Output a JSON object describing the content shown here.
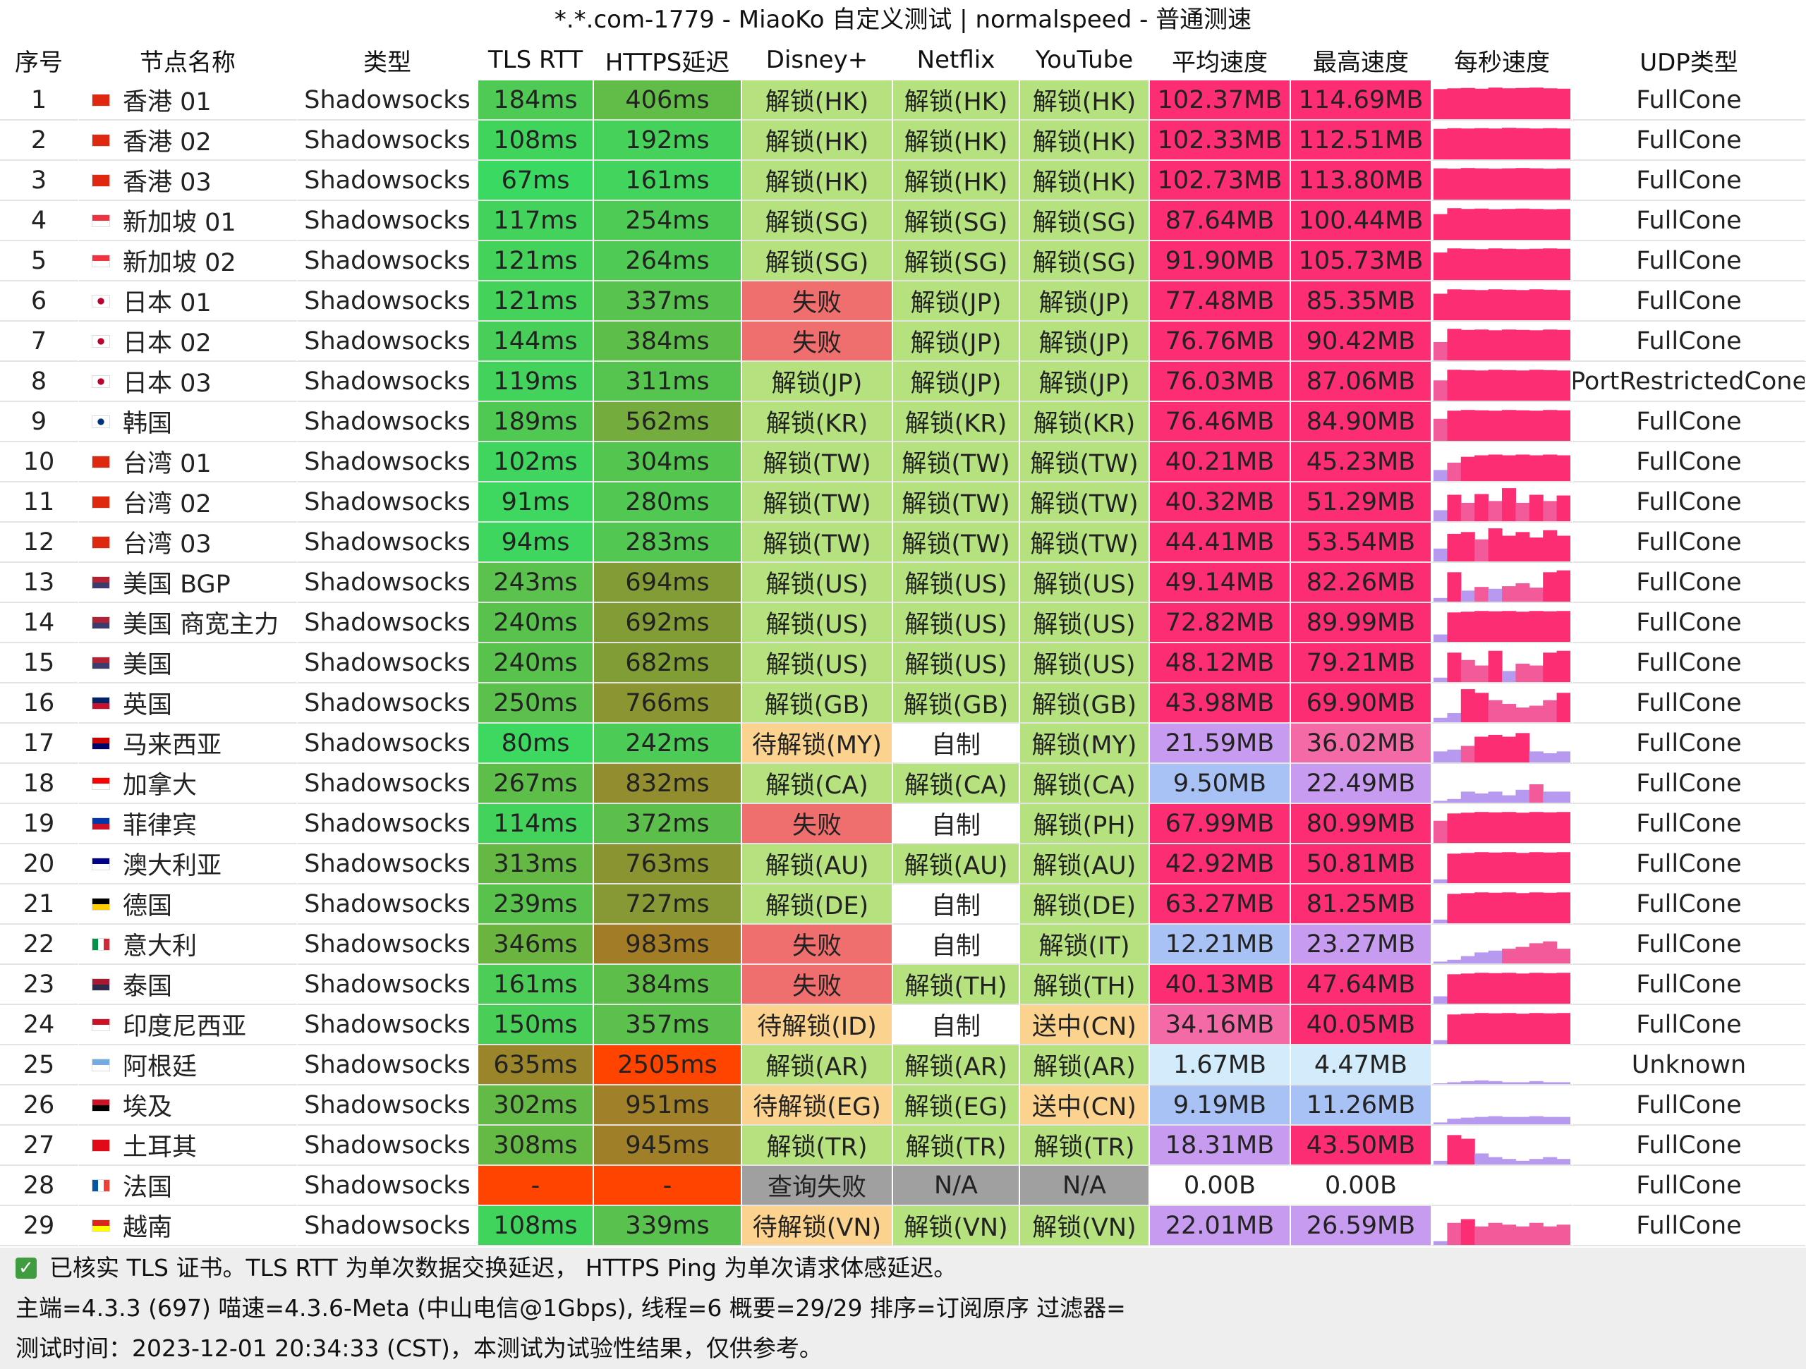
{
  "title": "*.*.com-1779 - MiaoKo 自定义测试 | normalspeed - 普通测速",
  "columns": [
    "序号",
    "节点名称",
    "类型",
    "TLS RTT",
    "HTTPS延迟",
    "Disney+",
    "Netflix",
    "YouTube",
    "平均速度",
    "最高速度",
    "每秒速度",
    "UDP类型"
  ],
  "rows": [
    {
      "idx": "1",
      "flag": "hk",
      "name": "香港 01",
      "type": "Shadowsocks",
      "tls": "184ms",
      "https": "406ms",
      "disney": "解锁(HK)",
      "netflix": "解锁(HK)",
      "youtube": "解锁(HK)",
      "avg": "102.37MB",
      "max": "114.69MB",
      "udp": "FullCone",
      "spark": [
        0.82,
        0.84,
        0.85,
        0.83,
        0.86,
        0.84,
        0.85,
        0.86,
        0.84,
        0.83
      ]
    },
    {
      "idx": "2",
      "flag": "hk",
      "name": "香港 02",
      "type": "Shadowsocks",
      "tls": "108ms",
      "https": "192ms",
      "disney": "解锁(HK)",
      "netflix": "解锁(HK)",
      "youtube": "解锁(HK)",
      "avg": "102.33MB",
      "max": "112.51MB",
      "udp": "FullCone",
      "spark": [
        0.83,
        0.85,
        0.84,
        0.85,
        0.84,
        0.86,
        0.85,
        0.84,
        0.85,
        0.84
      ]
    },
    {
      "idx": "3",
      "flag": "hk",
      "name": "香港 03",
      "type": "Shadowsocks",
      "tls": "67ms",
      "https": "161ms",
      "disney": "解锁(HK)",
      "netflix": "解锁(HK)",
      "youtube": "解锁(HK)",
      "avg": "102.73MB",
      "max": "113.80MB",
      "udp": "FullCone",
      "spark": [
        0.85,
        0.84,
        0.86,
        0.85,
        0.84,
        0.85,
        0.86,
        0.85,
        0.84,
        0.85
      ]
    },
    {
      "idx": "4",
      "flag": "sg",
      "name": "新加坡 01",
      "type": "Shadowsocks",
      "tls": "117ms",
      "https": "254ms",
      "disney": "解锁(SG)",
      "netflix": "解锁(SG)",
      "youtube": "解锁(SG)",
      "avg": "87.64MB",
      "max": "100.44MB",
      "udp": "FullCone",
      "spark": [
        0.7,
        0.86,
        0.84,
        0.85,
        0.83,
        0.84,
        0.85,
        0.84,
        0.83,
        0.84
      ]
    },
    {
      "idx": "5",
      "flag": "sg",
      "name": "新加坡 02",
      "type": "Shadowsocks",
      "tls": "121ms",
      "https": "264ms",
      "disney": "解锁(SG)",
      "netflix": "解锁(SG)",
      "youtube": "解锁(SG)",
      "avg": "91.90MB",
      "max": "105.73MB",
      "udp": "FullCone",
      "spark": [
        0.75,
        0.86,
        0.85,
        0.84,
        0.86,
        0.85,
        0.84,
        0.85,
        0.86,
        0.85
      ]
    },
    {
      "idx": "6",
      "flag": "jp",
      "name": "日本 01",
      "type": "Shadowsocks",
      "tls": "121ms",
      "https": "337ms",
      "disney": "失败",
      "netflix": "解锁(JP)",
      "youtube": "解锁(JP)",
      "avg": "77.48MB",
      "max": "85.35MB",
      "udp": "FullCone",
      "spark": [
        0.72,
        0.84,
        0.83,
        0.82,
        0.84,
        0.83,
        0.82,
        0.84,
        0.83,
        0.82
      ]
    },
    {
      "idx": "7",
      "flag": "jp",
      "name": "日本 02",
      "type": "Shadowsocks",
      "tls": "144ms",
      "https": "384ms",
      "disney": "失败",
      "netflix": "解锁(JP)",
      "youtube": "解锁(JP)",
      "avg": "76.76MB",
      "max": "90.42MB",
      "udp": "FullCone",
      "spark": [
        0.5,
        0.86,
        0.83,
        0.84,
        0.82,
        0.84,
        0.83,
        0.82,
        0.84,
        0.83
      ]
    },
    {
      "idx": "8",
      "flag": "jp",
      "name": "日本 03",
      "type": "Shadowsocks",
      "tls": "119ms",
      "https": "311ms",
      "disney": "解锁(JP)",
      "netflix": "解锁(JP)",
      "youtube": "解锁(JP)",
      "avg": "76.03MB",
      "max": "87.06MB",
      "udp": "PortRestrictedCone",
      "spark": [
        0.55,
        0.84,
        0.83,
        0.82,
        0.84,
        0.83,
        0.82,
        0.84,
        0.83,
        0.82
      ]
    },
    {
      "idx": "9",
      "flag": "kr",
      "name": "韩国",
      "type": "Shadowsocks",
      "tls": "189ms",
      "https": "562ms",
      "disney": "解锁(KR)",
      "netflix": "解锁(KR)",
      "youtube": "解锁(KR)",
      "avg": "76.46MB",
      "max": "84.90MB",
      "udp": "FullCone",
      "spark": [
        0.6,
        0.82,
        0.84,
        0.83,
        0.82,
        0.84,
        0.83,
        0.82,
        0.84,
        0.83
      ]
    },
    {
      "idx": "10",
      "flag": "cn",
      "name": "台湾 01",
      "type": "Shadowsocks",
      "tls": "102ms",
      "https": "304ms",
      "disney": "解锁(TW)",
      "netflix": "解锁(TW)",
      "youtube": "解锁(TW)",
      "avg": "40.21MB",
      "max": "45.23MB",
      "udp": "FullCone",
      "spark": [
        0.3,
        0.5,
        0.66,
        0.7,
        0.72,
        0.7,
        0.72,
        0.7,
        0.72,
        0.7
      ]
    },
    {
      "idx": "11",
      "flag": "cn",
      "name": "台湾 02",
      "type": "Shadowsocks",
      "tls": "91ms",
      "https": "280ms",
      "disney": "解锁(TW)",
      "netflix": "解锁(TW)",
      "youtube": "解锁(TW)",
      "avg": "40.32MB",
      "max": "51.29MB",
      "udp": "FullCone",
      "spark": [
        0.3,
        0.72,
        0.5,
        0.74,
        0.55,
        0.9,
        0.5,
        0.72,
        0.55,
        0.7
      ]
    },
    {
      "idx": "12",
      "flag": "cn",
      "name": "台湾 03",
      "type": "Shadowsocks",
      "tls": "94ms",
      "https": "283ms",
      "disney": "解锁(TW)",
      "netflix": "解锁(TW)",
      "youtube": "解锁(TW)",
      "avg": "44.41MB",
      "max": "53.54MB",
      "udp": "FullCone",
      "spark": [
        0.35,
        0.75,
        0.8,
        0.6,
        0.9,
        0.7,
        0.8,
        0.65,
        0.85,
        0.7
      ]
    },
    {
      "idx": "13",
      "flag": "us",
      "name": "美国 BGP",
      "type": "Shadowsocks",
      "tls": "243ms",
      "https": "694ms",
      "disney": "解锁(US)",
      "netflix": "解锁(US)",
      "youtube": "解锁(US)",
      "avg": "49.14MB",
      "max": "82.26MB",
      "udp": "FullCone",
      "spark": [
        0.1,
        0.8,
        0.3,
        0.4,
        0.35,
        0.42,
        0.5,
        0.38,
        0.8,
        0.85
      ]
    },
    {
      "idx": "14",
      "flag": "us",
      "name": "美国 商宽主力",
      "type": "Shadowsocks",
      "tls": "240ms",
      "https": "692ms",
      "disney": "解锁(US)",
      "netflix": "解锁(US)",
      "youtube": "解锁(US)",
      "avg": "72.82MB",
      "max": "89.99MB",
      "udp": "FullCone",
      "spark": [
        0.2,
        0.8,
        0.82,
        0.84,
        0.83,
        0.84,
        0.82,
        0.84,
        0.83,
        0.84
      ]
    },
    {
      "idx": "15",
      "flag": "us",
      "name": "美国",
      "type": "Shadowsocks",
      "tls": "240ms",
      "https": "682ms",
      "disney": "解锁(US)",
      "netflix": "解锁(US)",
      "youtube": "解锁(US)",
      "avg": "48.12MB",
      "max": "79.21MB",
      "udp": "FullCone",
      "spark": [
        0.12,
        0.8,
        0.6,
        0.45,
        0.85,
        0.3,
        0.5,
        0.45,
        0.8,
        0.85
      ]
    },
    {
      "idx": "16",
      "flag": "gb",
      "name": "英国",
      "type": "Shadowsocks",
      "tls": "250ms",
      "https": "766ms",
      "disney": "解锁(GB)",
      "netflix": "解锁(GB)",
      "youtube": "解锁(GB)",
      "avg": "43.98MB",
      "max": "69.90MB",
      "udp": "FullCone",
      "spark": [
        0.12,
        0.25,
        0.9,
        0.8,
        0.6,
        0.5,
        0.4,
        0.45,
        0.6,
        0.8
      ]
    },
    {
      "idx": "17",
      "flag": "my",
      "name": "马来西亚",
      "type": "Shadowsocks",
      "tls": "80ms",
      "https": "242ms",
      "disney": "待解锁(MY)",
      "netflix": "自制",
      "youtube": "解锁(MY)",
      "avg": "21.59MB",
      "max": "36.02MB",
      "udp": "FullCone",
      "spark": [
        0.3,
        0.35,
        0.45,
        0.7,
        0.75,
        0.7,
        0.8,
        0.3,
        0.25,
        0.3
      ]
    },
    {
      "idx": "18",
      "flag": "ca",
      "name": "加拿大",
      "type": "Shadowsocks",
      "tls": "267ms",
      "https": "832ms",
      "disney": "解锁(CA)",
      "netflix": "解锁(CA)",
      "youtube": "解锁(CA)",
      "avg": "9.50MB",
      "max": "22.49MB",
      "udp": "FullCone",
      "spark": [
        0.05,
        0.1,
        0.3,
        0.25,
        0.3,
        0.2,
        0.35,
        0.5,
        0.3,
        0.3
      ]
    },
    {
      "idx": "19",
      "flag": "ph",
      "name": "菲律宾",
      "type": "Shadowsocks",
      "tls": "114ms",
      "https": "372ms",
      "disney": "失败",
      "netflix": "自制",
      "youtube": "解锁(PH)",
      "avg": "67.99MB",
      "max": "80.99MB",
      "udp": "FullCone",
      "spark": [
        0.6,
        0.8,
        0.82,
        0.84,
        0.83,
        0.84,
        0.82,
        0.84,
        0.83,
        0.84
      ]
    },
    {
      "idx": "20",
      "flag": "au",
      "name": "澳大利亚",
      "type": "Shadowsocks",
      "tls": "313ms",
      "https": "763ms",
      "disney": "解锁(AU)",
      "netflix": "解锁(AU)",
      "youtube": "解锁(AU)",
      "avg": "42.92MB",
      "max": "50.81MB",
      "udp": "FullCone",
      "spark": [
        0.1,
        0.8,
        0.82,
        0.84,
        0.83,
        0.84,
        0.82,
        0.84,
        0.83,
        0.84
      ]
    },
    {
      "idx": "21",
      "flag": "de",
      "name": "德国",
      "type": "Shadowsocks",
      "tls": "239ms",
      "https": "727ms",
      "disney": "解锁(DE)",
      "netflix": "自制",
      "youtube": "解锁(DE)",
      "avg": "63.27MB",
      "max": "81.25MB",
      "udp": "FullCone",
      "spark": [
        0.1,
        0.8,
        0.82,
        0.84,
        0.83,
        0.84,
        0.82,
        0.84,
        0.83,
        0.84
      ]
    },
    {
      "idx": "22",
      "flag": "it",
      "name": "意大利",
      "type": "Shadowsocks",
      "tls": "346ms",
      "https": "983ms",
      "disney": "失败",
      "netflix": "自制",
      "youtube": "解锁(IT)",
      "avg": "12.21MB",
      "max": "23.27MB",
      "udp": "FullCone",
      "spark": [
        0.05,
        0.1,
        0.2,
        0.3,
        0.35,
        0.4,
        0.45,
        0.55,
        0.6,
        0.4
      ]
    },
    {
      "idx": "23",
      "flag": "th",
      "name": "泰国",
      "type": "Shadowsocks",
      "tls": "161ms",
      "https": "384ms",
      "disney": "失败",
      "netflix": "解锁(TH)",
      "youtube": "解锁(TH)",
      "avg": "40.13MB",
      "max": "47.64MB",
      "udp": "FullCone",
      "spark": [
        0.2,
        0.8,
        0.82,
        0.84,
        0.83,
        0.84,
        0.82,
        0.84,
        0.83,
        0.84
      ]
    },
    {
      "idx": "24",
      "flag": "id",
      "name": "印度尼西亚",
      "type": "Shadowsocks",
      "tls": "150ms",
      "https": "357ms",
      "disney": "待解锁(ID)",
      "netflix": "自制",
      "youtube": "送中(CN)",
      "avg": "34.16MB",
      "max": "40.05MB",
      "udp": "FullCone",
      "spark": [
        0.1,
        0.8,
        0.82,
        0.84,
        0.83,
        0.84,
        0.82,
        0.84,
        0.83,
        0.84
      ]
    },
    {
      "idx": "25",
      "flag": "ar",
      "name": "阿根廷",
      "type": "Shadowsocks",
      "tls": "635ms",
      "https": "2505ms",
      "disney": "解锁(AR)",
      "netflix": "解锁(AR)",
      "youtube": "解锁(AR)",
      "avg": "1.67MB",
      "max": "4.47MB",
      "udp": "Unknown",
      "spark": [
        0.02,
        0.05,
        0.08,
        0.1,
        0.08,
        0.05,
        0.05,
        0.08,
        0.05,
        0.05
      ]
    },
    {
      "idx": "26",
      "flag": "eg",
      "name": "埃及",
      "type": "Shadowsocks",
      "tls": "302ms",
      "https": "951ms",
      "disney": "待解锁(EG)",
      "netflix": "解锁(EG)",
      "youtube": "送中(CN)",
      "avg": "9.19MB",
      "max": "11.26MB",
      "udp": "FullCone",
      "spark": [
        0.05,
        0.15,
        0.18,
        0.2,
        0.22,
        0.2,
        0.2,
        0.22,
        0.2,
        0.2
      ]
    },
    {
      "idx": "27",
      "flag": "tr",
      "name": "土耳其",
      "type": "Shadowsocks",
      "tls": "308ms",
      "https": "945ms",
      "disney": "解锁(TR)",
      "netflix": "解锁(TR)",
      "youtube": "解锁(TR)",
      "avg": "18.31MB",
      "max": "43.50MB",
      "udp": "FullCone",
      "spark": [
        0.1,
        0.8,
        0.7,
        0.3,
        0.2,
        0.15,
        0.1,
        0.15,
        0.2,
        0.15
      ]
    },
    {
      "idx": "28",
      "flag": "fr",
      "name": "法国",
      "type": "Shadowsocks",
      "tls": "-",
      "https": "-",
      "disney": "查询失败",
      "netflix": "N/A",
      "youtube": "N/A",
      "avg": "0.00B",
      "max": "0.00B",
      "udp": "FullCone",
      "spark": []
    },
    {
      "idx": "29",
      "flag": "vn",
      "name": "越南",
      "type": "Shadowsocks",
      "tls": "108ms",
      "https": "339ms",
      "disney": "待解锁(VN)",
      "netflix": "解锁(VN)",
      "youtube": "解锁(VN)",
      "avg": "22.01MB",
      "max": "26.59MB",
      "udp": "FullCone",
      "spark": [
        0.1,
        0.6,
        0.7,
        0.5,
        0.6,
        0.55,
        0.5,
        0.6,
        0.5,
        0.55
      ]
    }
  ],
  "footer": {
    "line1": "已核实 TLS 证书。TLS RTT 为单次数据交换延迟， HTTPS Ping 为单次请求体感延迟。",
    "line2": "主端=4.3.3 (697) 喵速=4.3.6-Meta (中山电信@1Gbps), 线程=6 概要=29/29 排序=订阅原序 过滤器=",
    "line3": "测试时间：2023-12-01 20:34:33 (CST)，本测试为试验性结果，仅供参考。"
  },
  "colors": {
    "row_bg": "#ffffff",
    "header_bg": "#ffffff",
    "unlock": "#b5e27e",
    "fail": "#ef6e6e",
    "pending": "#fcd38e",
    "selfmade": "#ffffff",
    "na": "#a0a0a0",
    "send_cn": "#fcd38e",
    "spark_bar": "#fc2d72"
  }
}
